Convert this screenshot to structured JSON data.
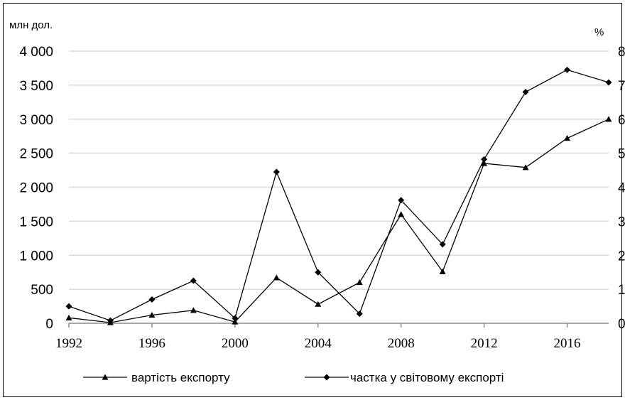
{
  "chart_data": {
    "type": "line",
    "title": "",
    "y_left_label": "млн дол.",
    "y_right_label": "%",
    "x": [
      1992,
      1994,
      1996,
      1998,
      2000,
      2002,
      2004,
      2006,
      2008,
      2010,
      2012,
      2014,
      2016,
      2018
    ],
    "x_ticks": [
      "1992",
      "1996",
      "2000",
      "2004",
      "2008",
      "2012",
      "2016"
    ],
    "y_left_ticks": [
      "0",
      "500",
      "1 000",
      "1 500",
      "2 000",
      "2 500",
      "3 000",
      "3 500",
      "4 000"
    ],
    "y_right_ticks": [
      "0",
      "1",
      "2",
      "3",
      "4",
      "5",
      "6",
      "7",
      "8"
    ],
    "ylim_left": [
      0,
      4000
    ],
    "ylim_right": [
      0,
      8
    ],
    "grid": true,
    "legend_position": "bottom",
    "series": [
      {
        "name": "вартість експорту",
        "axis": "left",
        "marker": "triangle",
        "values": [
          80,
          10,
          120,
          190,
          20,
          670,
          280,
          600,
          1600,
          760,
          2350,
          2290,
          2720,
          3000
        ]
      },
      {
        "name": "частка у світовому експорті",
        "axis": "right",
        "marker": "diamond",
        "values": [
          0.5,
          0.08,
          0.7,
          1.25,
          0.15,
          4.45,
          1.5,
          0.28,
          3.62,
          2.32,
          4.82,
          6.8,
          7.45,
          7.08
        ]
      }
    ]
  }
}
